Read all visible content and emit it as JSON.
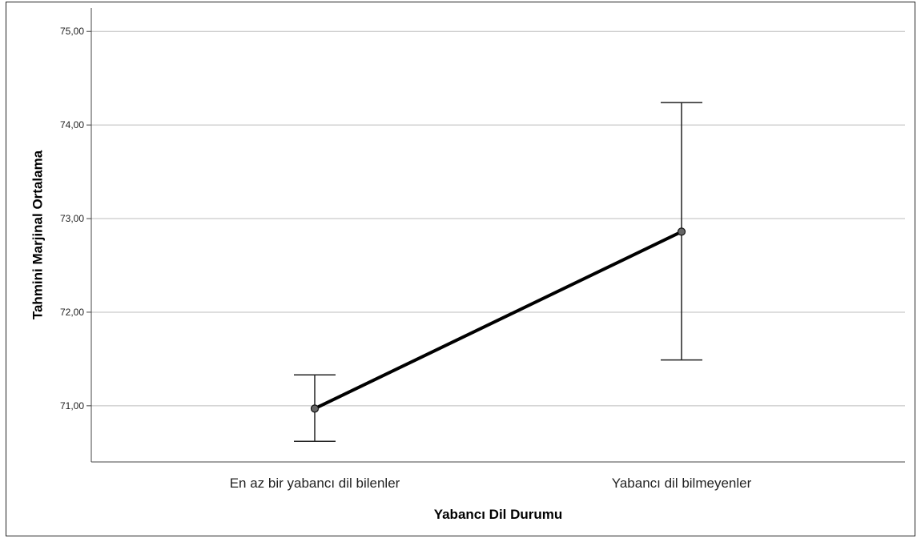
{
  "chart_data": {
    "type": "line",
    "title": "",
    "xlabel": "Yabancı Dil Durumu",
    "ylabel": "Tahmini Marjinal Ortalama",
    "categories": [
      "En az bir yabancı dil bilenler",
      "Yabancı dil bilmeyenler"
    ],
    "series": [
      {
        "values": [
          70.97,
          72.86
        ],
        "error_lower": [
          70.62,
          71.49
        ],
        "error_upper": [
          71.33,
          74.24
        ],
        "color": "#000000"
      }
    ],
    "ylim": [
      70.4,
      75.25
    ],
    "yticks": [
      71.0,
      72.0,
      73.0,
      74.0,
      75.0
    ],
    "ytick_labels": [
      "71,00",
      "72,00",
      "73,00",
      "74,00",
      "75,00"
    ],
    "grid": true,
    "grid_axis": "y",
    "legend": "none"
  }
}
